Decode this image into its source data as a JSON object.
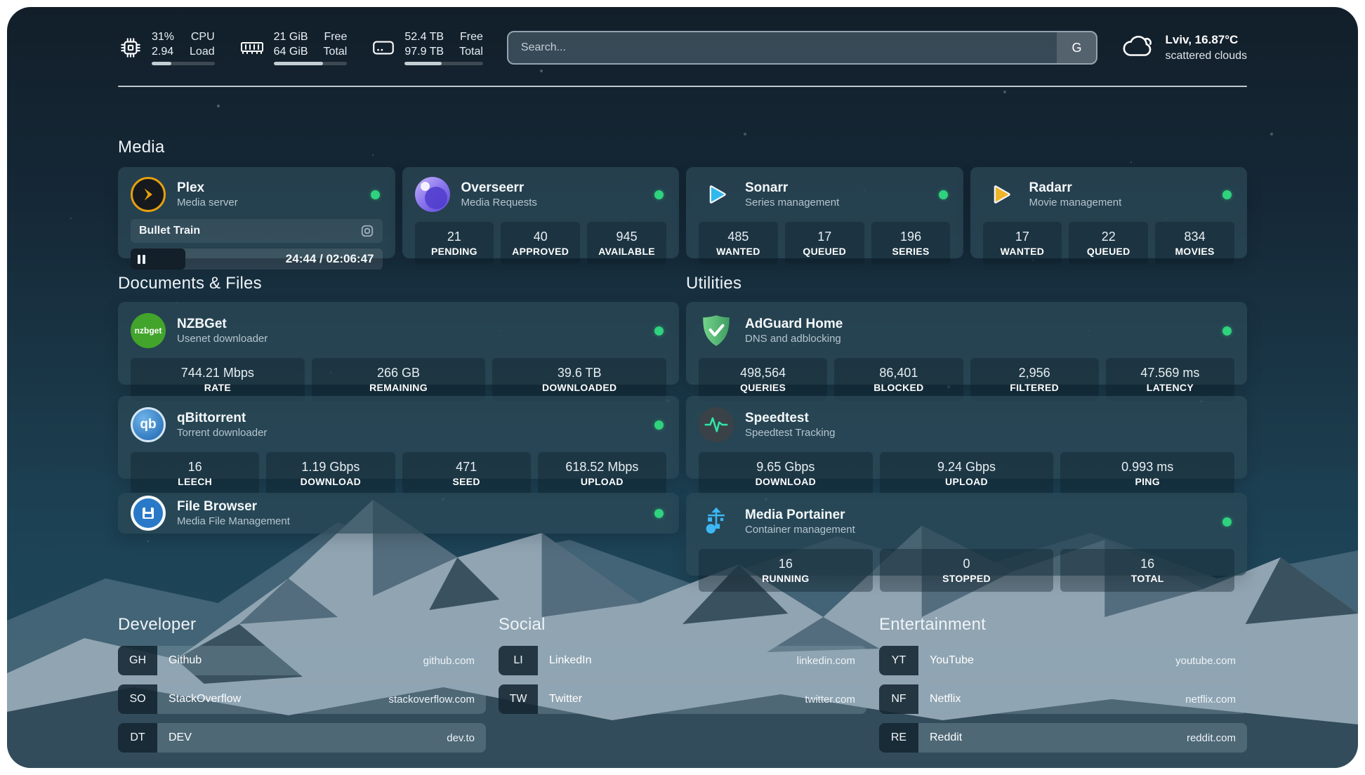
{
  "topbar": {
    "stats": [
      {
        "icon": "cpu-icon",
        "col1": [
          "31%",
          "2.94"
        ],
        "col2": [
          "CPU",
          "Load"
        ],
        "progress_pct": 31
      },
      {
        "icon": "ram-icon",
        "col1": [
          "21 GiB",
          "64 GiB"
        ],
        "col2": [
          "Free",
          "Total"
        ],
        "progress_pct": 67
      },
      {
        "icon": "disk-icon",
        "col1": [
          "52.4 TB",
          "97.9 TB"
        ],
        "col2": [
          "Free",
          "Total"
        ],
        "progress_pct": 47
      }
    ],
    "search": {
      "placeholder": "Search...",
      "button_label": "G"
    },
    "weather": {
      "line1": "Lviv, 16.87°C",
      "line2": "scattered clouds"
    }
  },
  "media": {
    "title": "Media",
    "cards": [
      {
        "title": "Plex",
        "subtitle": "Media server",
        "icon": "plex-icon",
        "online": true,
        "now_playing": {
          "title": "Bullet Train",
          "time": "24:44 / 02:06:47",
          "progress_pct": 19
        }
      },
      {
        "title": "Overseerr",
        "subtitle": "Media Requests",
        "icon": "overseerr-icon",
        "online": true,
        "stats": [
          {
            "value": "21",
            "label": "PENDING"
          },
          {
            "value": "40",
            "label": "APPROVED"
          },
          {
            "value": "945",
            "label": "AVAILABLE"
          }
        ]
      },
      {
        "title": "Sonarr",
        "subtitle": "Series management",
        "icon": "sonarr-icon",
        "online": true,
        "stats": [
          {
            "value": "485",
            "label": "WANTED"
          },
          {
            "value": "17",
            "label": "QUEUED"
          },
          {
            "value": "196",
            "label": "SERIES"
          }
        ]
      },
      {
        "title": "Radarr",
        "subtitle": "Movie management",
        "icon": "radarr-icon",
        "online": true,
        "stats": [
          {
            "value": "17",
            "label": "WANTED"
          },
          {
            "value": "22",
            "label": "QUEUED"
          },
          {
            "value": "834",
            "label": "MOVIES"
          }
        ]
      }
    ]
  },
  "documents": {
    "title": "Documents & Files",
    "cards": [
      {
        "title": "NZBGet",
        "subtitle": "Usenet downloader",
        "icon": "nzbget-icon",
        "online": true,
        "stats": [
          {
            "value": "744.21 Mbps",
            "label": "RATE"
          },
          {
            "value": "266 GB",
            "label": "REMAINING"
          },
          {
            "value": "39.6 TB",
            "label": "DOWNLOADED"
          }
        ]
      },
      {
        "title": "qBittorrent",
        "subtitle": "Torrent downloader",
        "icon": "qbittorrent-icon",
        "online": true,
        "stats": [
          {
            "value": "16",
            "label": "LEECH"
          },
          {
            "value": "1.19 Gbps",
            "label": "DOWNLOAD"
          },
          {
            "value": "471",
            "label": "SEED"
          },
          {
            "value": "618.52 Mbps",
            "label": "UPLOAD"
          }
        ]
      },
      {
        "title": "File Browser",
        "subtitle": "Media File Management",
        "icon": "filebrowser-icon",
        "online": true,
        "stats": []
      }
    ]
  },
  "utilities": {
    "title": "Utilities",
    "cards": [
      {
        "title": "AdGuard Home",
        "subtitle": "DNS and adblocking",
        "icon": "adguard-icon",
        "online": true,
        "stats": [
          {
            "value": "498,564",
            "label": "QUERIES"
          },
          {
            "value": "86,401",
            "label": "BLOCKED"
          },
          {
            "value": "2,956",
            "label": "FILTERED"
          },
          {
            "value": "47.569 ms",
            "label": "LATENCY"
          }
        ]
      },
      {
        "title": "Speedtest",
        "subtitle": "Speedtest Tracking",
        "icon": "speedtest-icon",
        "online": false,
        "stats": [
          {
            "value": "9.65 Gbps",
            "label": "DOWNLOAD"
          },
          {
            "value": "9.24 Gbps",
            "label": "UPLOAD"
          },
          {
            "value": "0.993 ms",
            "label": "PING"
          }
        ]
      },
      {
        "title": "Media Portainer",
        "subtitle": "Container management",
        "icon": "portainer-icon",
        "online": true,
        "stats": [
          {
            "value": "16",
            "label": "RUNNING"
          },
          {
            "value": "0",
            "label": "STOPPED"
          },
          {
            "value": "16",
            "label": "TOTAL"
          }
        ]
      }
    ]
  },
  "bookmarks": [
    {
      "title": "Developer",
      "items": [
        {
          "abbr": "GH",
          "name": "Github",
          "url": "github.com"
        },
        {
          "abbr": "SO",
          "name": "StackOverflow",
          "url": "stackoverflow.com"
        },
        {
          "abbr": "DT",
          "name": "DEV",
          "url": "dev.to"
        }
      ]
    },
    {
      "title": "Social",
      "items": [
        {
          "abbr": "LI",
          "name": "LinkedIn",
          "url": "linkedin.com"
        },
        {
          "abbr": "TW",
          "name": "Twitter",
          "url": "twitter.com"
        }
      ]
    },
    {
      "title": "Entertainment",
      "items": [
        {
          "abbr": "YT",
          "name": "YouTube",
          "url": "youtube.com"
        },
        {
          "abbr": "NF",
          "name": "Netflix",
          "url": "netflix.com"
        },
        {
          "abbr": "RE",
          "name": "Reddit",
          "url": "reddit.com"
        }
      ]
    }
  ],
  "icons": {
    "nzbget_label": "nzbget",
    "qbittorrent_label": "qb"
  },
  "colors": {
    "status_green": "#2fd27d",
    "plex_amber": "#e5a00d",
    "sonarr_blue": "#2fb9ec",
    "radarr_amber": "#f0b429",
    "nzbget_green": "#43a42c",
    "qbittorrent_blue": "#3178be",
    "adguard_green": "#52b06c",
    "portainer_blue": "#3db8f5",
    "filebrowser_blue": "#2979c8",
    "speedtest_pulse": "#2ee6a8"
  }
}
